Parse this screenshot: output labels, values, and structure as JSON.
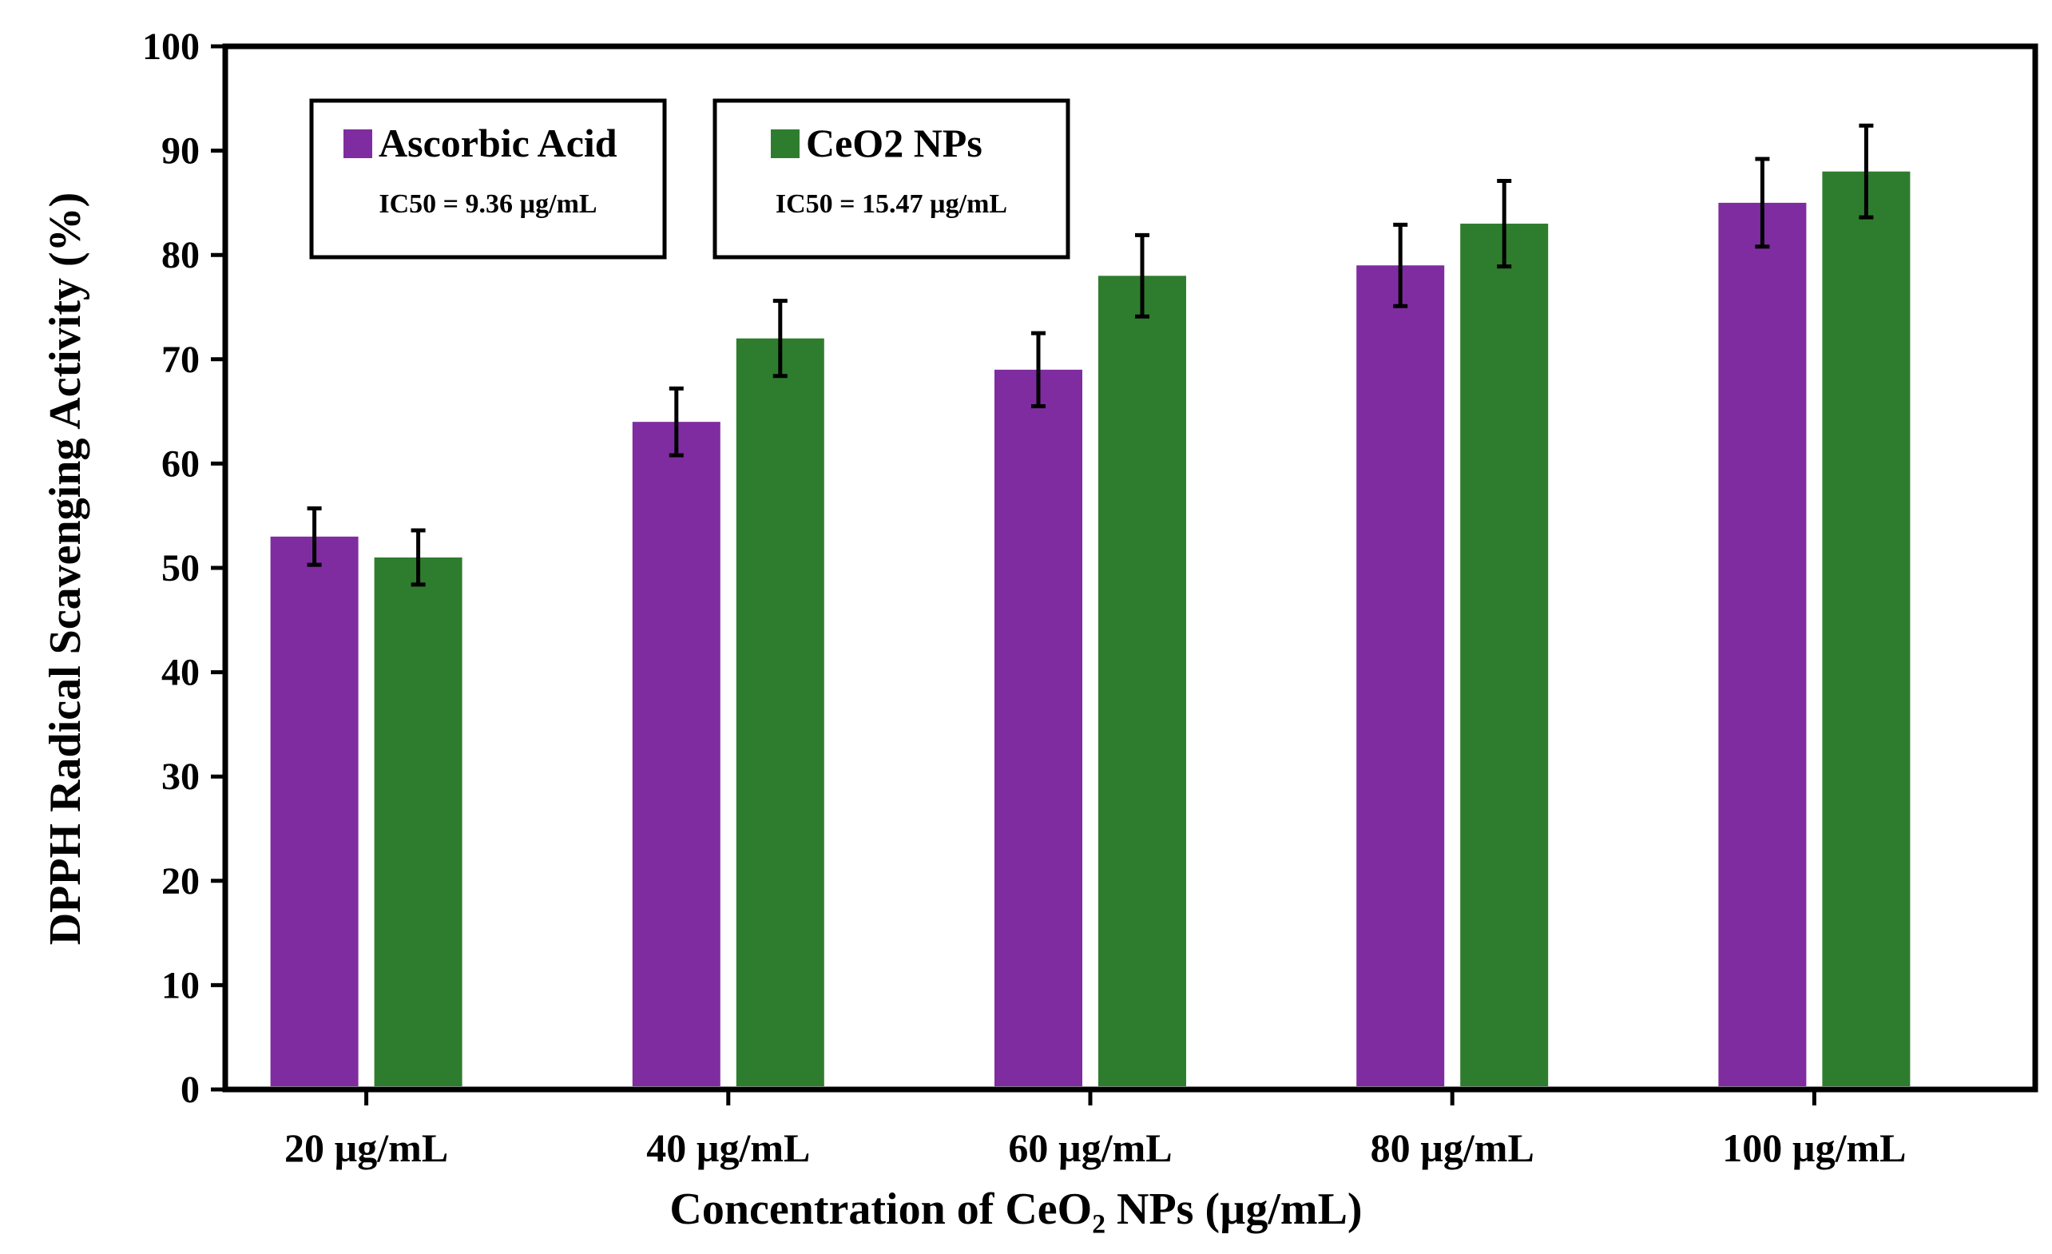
{
  "chart_data": {
    "type": "bar",
    "title": "",
    "xlabel": "Concentration of CeO₂ NPs (µg/mL)",
    "ylabel": "DPPH Radical Scavenging Activity (%)",
    "categories": [
      "20 µg/mL",
      "40 µg/mL",
      "60 µg/mL",
      "80 µg/mL",
      "100 µg/mL"
    ],
    "ylim": [
      0,
      100
    ],
    "yticks": [
      0,
      10,
      20,
      30,
      40,
      50,
      60,
      70,
      80,
      90,
      100
    ],
    "grid": false,
    "legend_position": "top-left",
    "series": [
      {
        "name": "Ascorbic Acid",
        "color": "#7f2ca1",
        "values": [
          53,
          64,
          69,
          79,
          85
        ],
        "errors": [
          2.7,
          3.2,
          3.5,
          3.9,
          4.2
        ],
        "ic50": "IC50 = 9.36 µg/mL"
      },
      {
        "name": "CeO2 NPs",
        "color": "#2e7d2e",
        "values": [
          51,
          72,
          78,
          83,
          88
        ],
        "errors": [
          2.6,
          3.6,
          3.9,
          4.1,
          4.4
        ],
        "ic50": "IC50 = 15.47 µg/mL"
      }
    ]
  }
}
